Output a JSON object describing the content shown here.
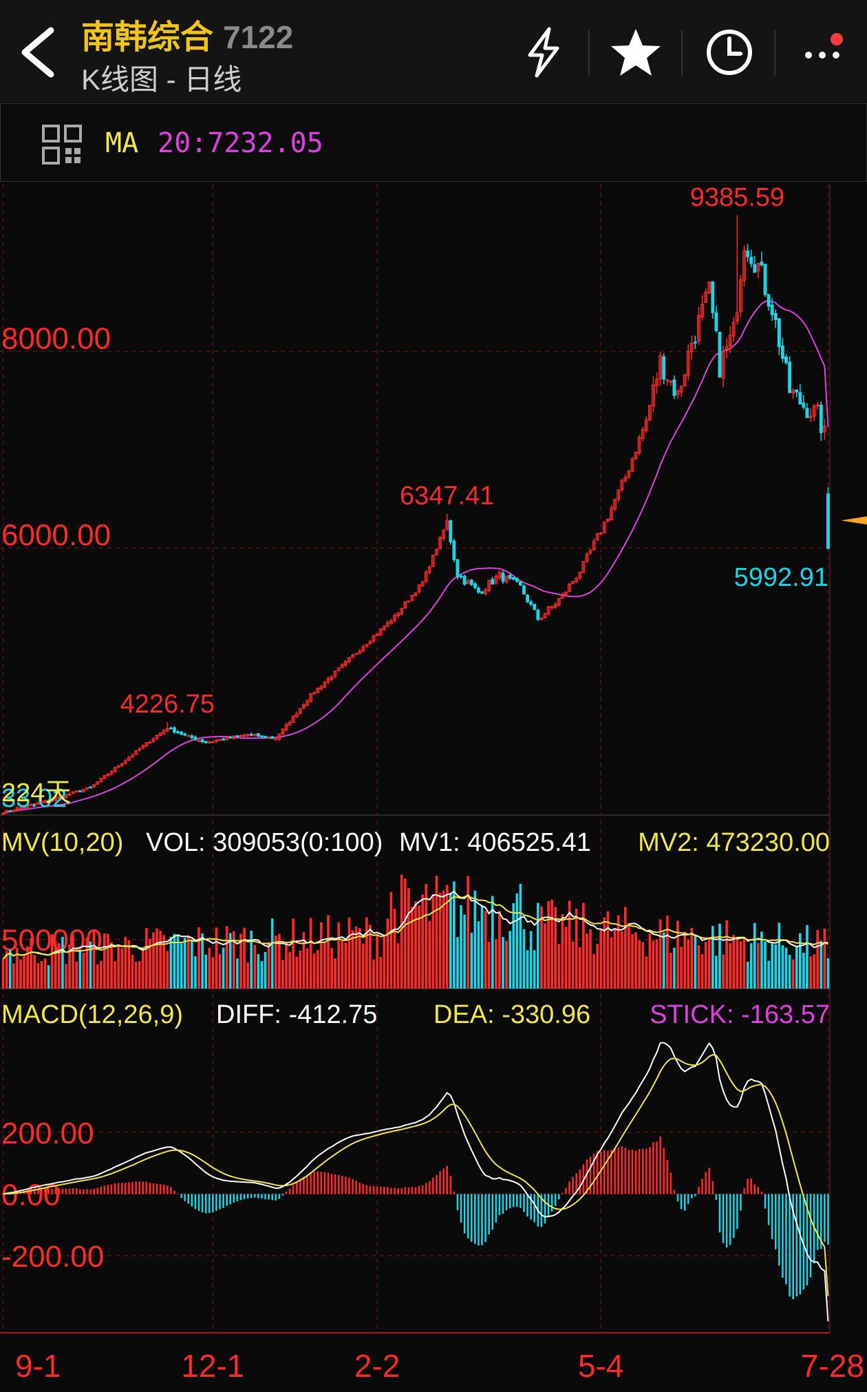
{
  "header": {
    "title": "南韩综合",
    "code": "7122",
    "subtitle": "K线图 - 日线",
    "icons": [
      "back-icon",
      "lightning-icon",
      "star-icon",
      "clock-icon",
      "more-icon"
    ]
  },
  "ma_bar": {
    "label": "MA",
    "value": "20:7232.05"
  },
  "colors": {
    "up": "#ff2a2a",
    "down": "#22d3e6",
    "ma": "#e040e0",
    "yellow": "#f0e84a",
    "white": "#ffffff"
  },
  "chart_data": [
    {
      "type": "candlestick",
      "panel": "price",
      "y_ticks": [
        "8000.00",
        "6000.00"
      ],
      "y_tick_values": [
        8000,
        6000
      ],
      "ylim": [
        3280,
        9700
      ],
      "x_tick_labels": [
        "9-1",
        "12-1",
        "2-2",
        "5-4",
        "7-28"
      ],
      "x_tick_index": [
        0,
        60,
        107,
        171,
        236
      ],
      "annotations": [
        {
          "label": "9385.59",
          "value": 9385.59,
          "index": 210,
          "kind": "high"
        },
        {
          "label": "6347.41",
          "value": 6347.41,
          "index": 127,
          "kind": "high"
        },
        {
          "label": "4226.75",
          "value": 4226.75,
          "index": 47,
          "kind": "high"
        },
        {
          "label": "5992.91",
          "value": 5992.91,
          "index": 236,
          "kind": "last"
        }
      ],
      "left_label": "224天",
      "left_label_2": "33.02",
      "last_close": 5992.91,
      "ma20_last": 7232.05
    },
    {
      "type": "bar",
      "panel": "volume",
      "legend": {
        "name": "MV(10,20)",
        "vol": "VOL: 309053(0:100)",
        "mv1": "MV1: 406525.41",
        "mv2": "MV2: 473230.00"
      },
      "y_ticks": [
        "500000"
      ],
      "y_tick_values": [
        500000
      ],
      "ylim": [
        0,
        1400000
      ]
    },
    {
      "type": "bar+line",
      "panel": "macd",
      "legend": {
        "name": "MACD(12,26,9)",
        "diff": "DIFF: -412.75",
        "dea": "DEA: -330.96",
        "stick": "STICK: -163.57"
      },
      "y_ticks": [
        "200.00",
        "0.00",
        "-200.00"
      ],
      "y_tick_values": [
        200,
        0,
        -200
      ],
      "ylim": [
        -450,
        550
      ]
    }
  ]
}
